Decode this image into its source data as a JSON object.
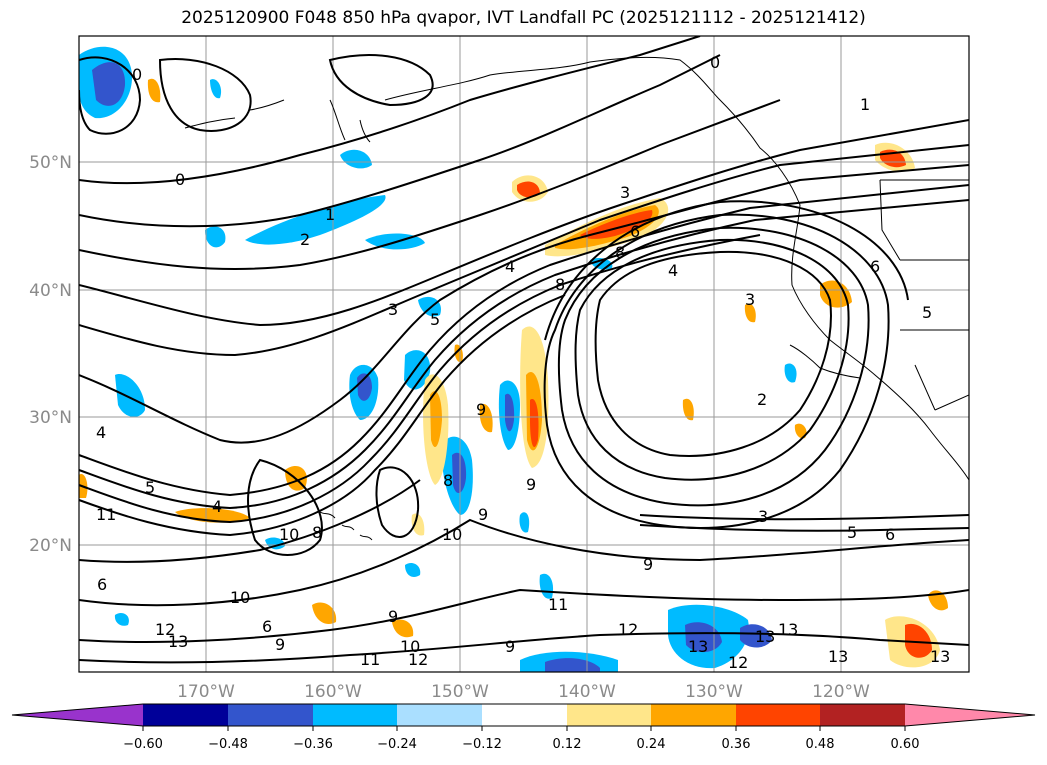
{
  "title": "2025120900 F048 850 hPa qvapor, IVT Landfall PC (2025121112 - 2025121412)",
  "lat_labels": [
    "50°N",
    "40°N",
    "30°N",
    "20°N"
  ],
  "lon_labels": [
    "170°W",
    "160°W",
    "150°W",
    "140°W",
    "130°W",
    "120°W"
  ],
  "colorbar": {
    "colors": [
      "#9933cc",
      "#000099",
      "#3355cc",
      "#00bbff",
      "#aadfff",
      "#ffffff",
      "#ffe68a",
      "#ffa600",
      "#ff4400",
      "#b22222",
      "#ff88aa"
    ],
    "ticks": [
      "−0.60",
      "−0.48",
      "−0.36",
      "−0.24",
      "−0.12",
      "0.12",
      "0.24",
      "0.36",
      "0.48",
      "0.60"
    ]
  },
  "contour_labels": [
    "0",
    "1",
    "2",
    "3",
    "4",
    "5",
    "6",
    "8",
    "9",
    "10",
    "11",
    "12",
    "13"
  ],
  "chart_data": {
    "type": "map",
    "title": "2025120900 F048 850 hPa qvapor, IVT Landfall PC (2025121112 - 2025121412)",
    "variable": "850 hPa qvapor, IVT Landfall PC",
    "lon_range": [
      -180,
      -110
    ],
    "lat_range": [
      10,
      60
    ],
    "colorbar_levels": [
      -0.6,
      -0.48,
      -0.36,
      -0.24,
      -0.12,
      0.12,
      0.24,
      0.36,
      0.48,
      0.6
    ]
  }
}
